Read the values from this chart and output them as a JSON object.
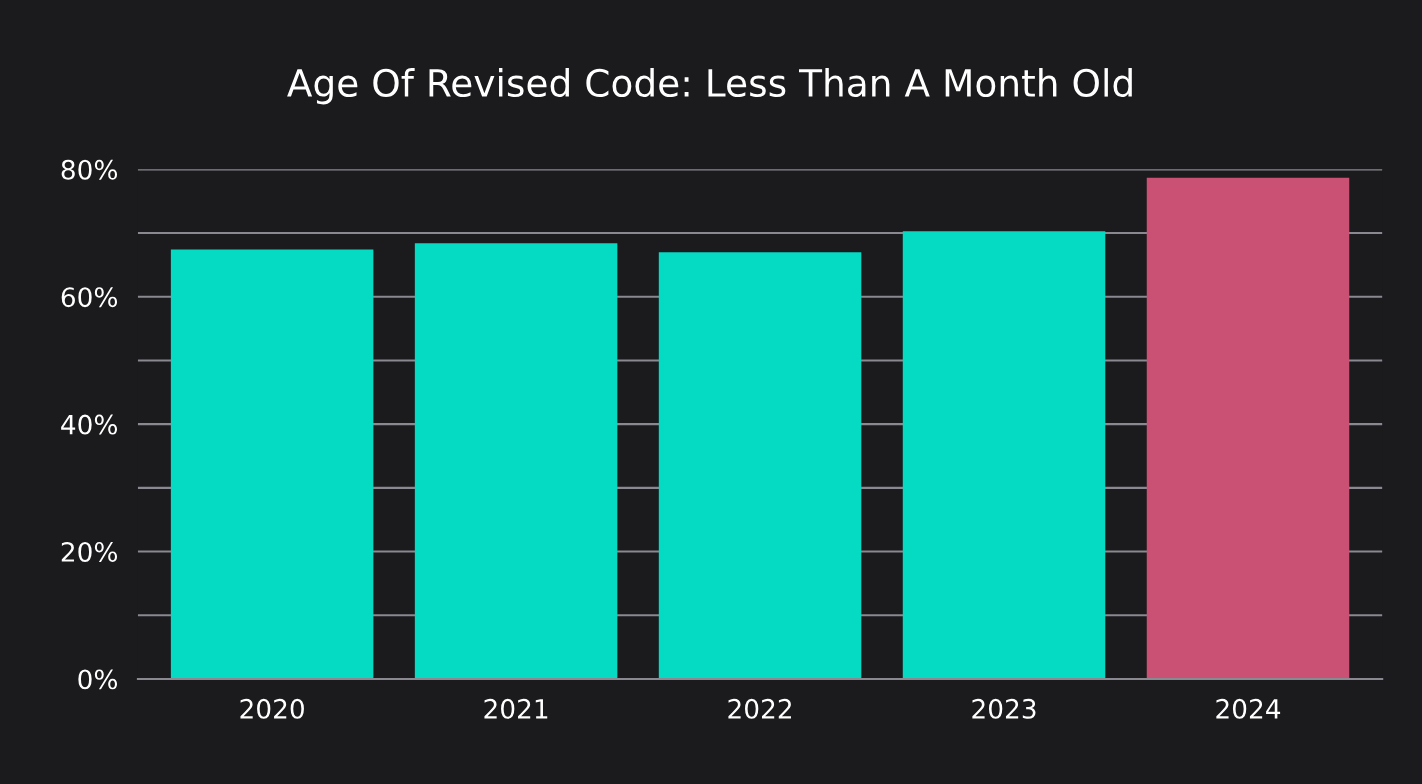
{
  "chart_data": {
    "type": "bar",
    "title": "Age Of Revised Code: Less Than A Month Old",
    "categories": [
      "2020",
      "2021",
      "2022",
      "2023",
      "2024"
    ],
    "values": [
      67.4,
      68.4,
      67.0,
      70.3,
      78.7
    ],
    "colors": [
      "#05dbc3",
      "#05dbc3",
      "#05dbc3",
      "#05dbc3",
      "#cb5174"
    ],
    "ylim": [
      0,
      80
    ],
    "yticks": [
      {
        "value": 0,
        "label": "0%"
      },
      {
        "value": 10,
        "label": null
      },
      {
        "value": 20,
        "label": "20%"
      },
      {
        "value": 30,
        "label": null
      },
      {
        "value": 40,
        "label": "40%"
      },
      {
        "value": 50,
        "label": null
      },
      {
        "value": 60,
        "label": "60%"
      },
      {
        "value": 70,
        "label": null
      },
      {
        "value": 80,
        "label": "80%"
      }
    ],
    "grid": "y"
  }
}
